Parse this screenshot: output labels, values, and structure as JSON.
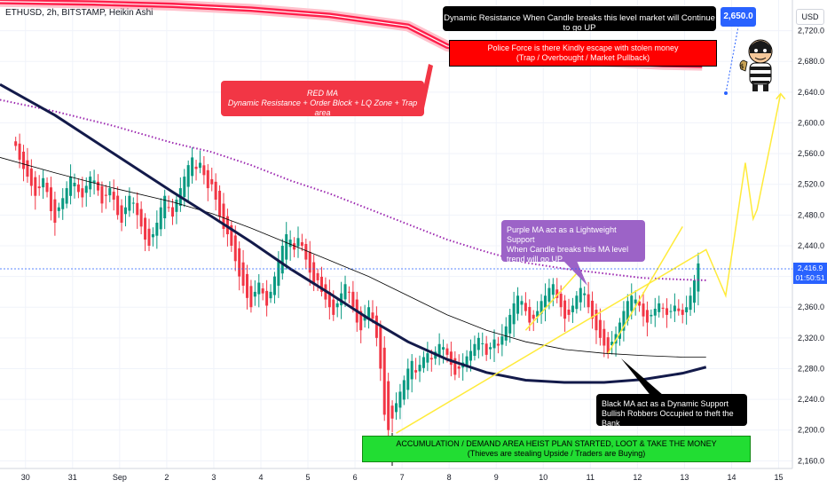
{
  "header": {
    "symbol_title": "ETHUSD, 2h, BITSTAMP, Heikin Ashi",
    "currency": "USD"
  },
  "price_axis": {
    "last_price": "2,416.9",
    "countdown": "01:50:51",
    "target_price": "2,650.0"
  },
  "annotations": {
    "top_box": "Dynamic Resistance When Candle breaks this level market will Continue to go UP",
    "police_line1": "Police Force is there Kindly escape with stolen money",
    "police_line2": "(Trap / Overbought / Market Pullback)",
    "red_ma_line1": "RED MA",
    "red_ma_line2": "Dynamic Resistance + Order Block + LQ Zone + Trap area",
    "purple_line1": "Purple MA act as a Lightweight Support",
    "purple_line2": "When Candle breaks this MA level",
    "purple_line3": "trend will go UP",
    "black_line1": "Black MA act as a Dynamic Support",
    "black_line2": "Bullish Robbers Occupied to theft the Bank",
    "green_line1": "ACCUMULATION / DEMAND AREA HEIST PLAN STARTED, LOOT & TAKE THE MONEY",
    "green_line2": "(Thieves are stealing Upside / Traders are Buying)"
  },
  "colors": {
    "up_candle": "#089981",
    "down_candle": "#f23645",
    "red_ma": "#ff1f4b",
    "purple_ma": "#9c27b0",
    "black_ma": "#131a4a",
    "thin_ma": "#000000",
    "projection": "#ffeb3b",
    "target_line": "#2962ff"
  },
  "chart_data": {
    "type": "candlestick",
    "title": "ETHUSD, 2h, BITSTAMP, Heikin Ashi",
    "y_axis": {
      "range": [
        2150,
        2760
      ],
      "ticks": [
        2160,
        2200,
        2240,
        2280,
        2320,
        2360,
        2400,
        2440,
        2480,
        2520,
        2560,
        2600,
        2640,
        2680,
        2720
      ],
      "tick_labels": [
        "2,160.0",
        "2,200.0",
        "2,240.0",
        "2,280.0",
        "2,320.0",
        "2,360.0",
        "2,400.0",
        "2,440.0",
        "2,480.0",
        "2,520.0",
        "2,560.0",
        "2,600.0",
        "2,640.0",
        "2,680.0",
        "2,720.0"
      ]
    },
    "x_axis": {
      "tick_labels": [
        "30",
        "31",
        "Sep",
        "2",
        "3",
        "4",
        "5",
        "6",
        "7",
        "8",
        "9",
        "10",
        "11",
        "12",
        "13",
        "14",
        "15"
      ],
      "tick_index": [
        2.5,
        14.5,
        26.5,
        38.5,
        50.5,
        62.5,
        74.5,
        86.5,
        98.5,
        110.5,
        122.5,
        134.5,
        146.5,
        158.5,
        170.5,
        182.5,
        194.5
      ],
      "range": [
        -4,
        198
      ]
    },
    "candles_close": [
      2570,
      2552,
      2540,
      2530,
      2518,
      2505,
      2515,
      2528,
      2510,
      2485,
      2470,
      2490,
      2502,
      2515,
      2530,
      2522,
      2510,
      2503,
      2518,
      2530,
      2525,
      2512,
      2495,
      2505,
      2515,
      2500,
      2480,
      2470,
      2490,
      2505,
      2496,
      2480,
      2465,
      2448,
      2440,
      2455,
      2470,
      2490,
      2505,
      2490,
      2478,
      2500,
      2515,
      2530,
      2545,
      2555,
      2540,
      2548,
      2532,
      2515,
      2520,
      2500,
      2478,
      2462,
      2455,
      2440,
      2420,
      2400,
      2388,
      2372,
      2360,
      2380,
      2392,
      2378,
      2362,
      2380,
      2400,
      2420,
      2440,
      2455,
      2448,
      2435,
      2450,
      2440,
      2422,
      2405,
      2390,
      2395,
      2380,
      2370,
      2360,
      2350,
      2365,
      2378,
      2390,
      2380,
      2360,
      2340,
      2330,
      2350,
      2360,
      2345,
      2320,
      2280,
      2220,
      2200,
      2215,
      2235,
      2250,
      2265,
      2280,
      2290,
      2275,
      2285,
      2295,
      2300,
      2292,
      2302,
      2312,
      2308,
      2298,
      2285,
      2272,
      2280,
      2288,
      2296,
      2303,
      2312,
      2320,
      2313,
      2298,
      2308,
      2318,
      2310,
      2322,
      2335,
      2350,
      2365,
      2375,
      2368,
      2355,
      2340,
      2345,
      2355,
      2368,
      2375,
      2385,
      2390,
      2372,
      2360,
      2345,
      2350,
      2362,
      2375,
      2385,
      2378,
      2360,
      2345,
      2330,
      2320,
      2310,
      2300,
      2315,
      2325,
      2340,
      2355,
      2368,
      2375,
      2370,
      2362,
      2348,
      2340,
      2350,
      2358,
      2365,
      2358,
      2350,
      2355,
      2362,
      2355,
      2350,
      2360,
      2375,
      2395,
      2417
    ],
    "series": [
      {
        "name": "RED MA",
        "x": [
          -4,
          20,
          40,
          60,
          80,
          100,
          110,
          120,
          135,
          150,
          165,
          175
        ],
        "y": [
          2758,
          2756,
          2753,
          2748,
          2740,
          2726,
          2700,
          2690,
          2684,
          2680,
          2676,
          2675
        ]
      },
      {
        "name": "Purple MA",
        "x": [
          -4,
          10,
          25,
          40,
          50,
          60,
          70,
          80,
          90,
          100,
          110,
          120,
          130,
          140,
          150,
          160,
          170,
          176
        ],
        "y": [
          2630,
          2615,
          2596,
          2574,
          2562,
          2545,
          2525,
          2508,
          2488,
          2468,
          2448,
          2432,
          2418,
          2410,
          2404,
          2398,
          2396,
          2395
        ]
      },
      {
        "name": "Black MA",
        "x": [
          -4,
          10,
          25,
          40,
          50,
          60,
          70,
          80,
          90,
          100,
          110,
          120,
          130,
          140,
          150,
          160,
          170,
          176
        ],
        "y": [
          2650,
          2610,
          2560,
          2510,
          2478,
          2445,
          2410,
          2378,
          2345,
          2315,
          2292,
          2275,
          2265,
          2262,
          2262,
          2266,
          2274,
          2282
        ]
      },
      {
        "name": "Thin MA",
        "x": [
          -4,
          10,
          25,
          40,
          50,
          60,
          70,
          80,
          90,
          100,
          110,
          120,
          130,
          140,
          150,
          160,
          170,
          176
        ],
        "y": [
          2555,
          2535,
          2515,
          2497,
          2482,
          2463,
          2442,
          2421,
          2400,
          2375,
          2350,
          2330,
          2315,
          2305,
          2300,
          2297,
          2295,
          2295
        ]
      },
      {
        "name": "Projection",
        "x": [
          97,
          176,
          181,
          186,
          188,
          189,
          195
        ],
        "y": [
          2196,
          2435,
          2375,
          2548,
          2475,
          2487,
          2638
        ]
      },
      {
        "name": "Rise",
        "x": [
          130,
          143
        ],
        "y": [
          2330,
          2404
        ]
      },
      {
        "name": "Breakout",
        "x": [
          151,
          170
        ],
        "y": [
          2300,
          2465
        ]
      }
    ]
  }
}
